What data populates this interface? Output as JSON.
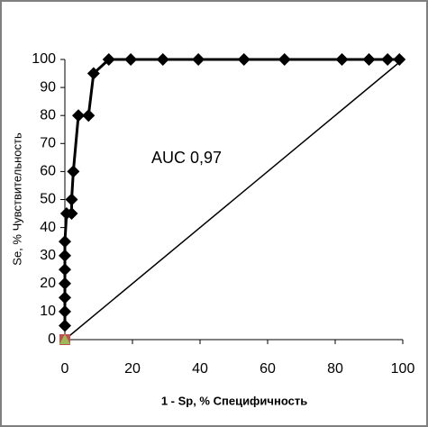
{
  "chart_data": {
    "type": "line",
    "x_label": "1 - Sp, % Специфичность",
    "y_label": "Se, % Чувствительность",
    "annotation": "AUC 0,97",
    "series": [
      {
        "color": "#000000",
        "marker": "diamond",
        "x": [
          0,
          0,
          0,
          0,
          0,
          0,
          0,
          0.5,
          2,
          2,
          2.5,
          4,
          7,
          8.5,
          13,
          19.5,
          29,
          39.5,
          53,
          65,
          82,
          90,
          95.5,
          99
        ],
        "values": [
          5,
          10,
          15,
          20,
          25,
          30,
          35,
          45,
          45,
          50,
          60,
          80,
          80,
          95,
          100,
          100,
          100,
          100,
          100,
          100,
          100,
          100,
          100,
          100
        ]
      },
      {
        "color": "#000000",
        "marker": "none",
        "x": [
          0,
          100
        ],
        "values": [
          0,
          100
        ]
      }
    ],
    "xlim": [
      0,
      100
    ],
    "xticks": [
      0,
      20,
      40,
      60,
      80,
      100
    ],
    "ylim": [
      0,
      100
    ],
    "yticks": [
      0,
      10,
      20,
      30,
      40,
      50,
      60,
      70,
      80,
      90,
      100
    ],
    "grid": false
  }
}
